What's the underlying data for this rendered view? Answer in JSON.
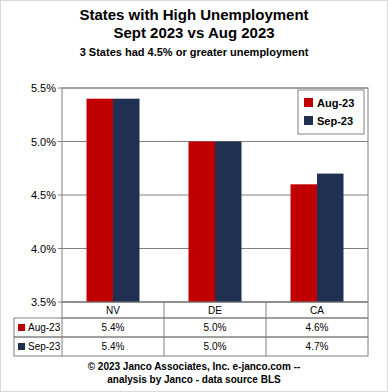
{
  "chart_data": {
    "type": "bar",
    "title": [
      "States with High Unemployment",
      "Sept 2023 vs Aug 2023"
    ],
    "subtitle": "3 States had 4.5% or greater unemployment",
    "categories": [
      "NV",
      "DE",
      "CA"
    ],
    "series": [
      {
        "name": "Aug-23",
        "color": "#c00000",
        "values": [
          5.4,
          5.0,
          4.6
        ],
        "value_labels": [
          "5.4%",
          "5.0%",
          "4.6%"
        ]
      },
      {
        "name": "Sep-23",
        "color": "#1f3050",
        "values": [
          5.4,
          5.0,
          4.7
        ],
        "value_labels": [
          "5.4%",
          "5.0%",
          "4.7%"
        ]
      }
    ],
    "ylim": [
      3.5,
      5.5
    ],
    "yticks": [
      {
        "value": 3.5,
        "label": "3.5%"
      },
      {
        "value": 4.0,
        "label": "4.0%"
      },
      {
        "value": 4.5,
        "label": "4.5%"
      },
      {
        "value": 5.0,
        "label": "5.0%"
      },
      {
        "value": 5.5,
        "label": "5.5%"
      }
    ],
    "grid": true,
    "legend": "top-right",
    "data_labels": true,
    "source": [
      "© 2023 Janco Associates, Inc. e-janco.com --",
      "analysis by Janco - data source BLS"
    ]
  }
}
